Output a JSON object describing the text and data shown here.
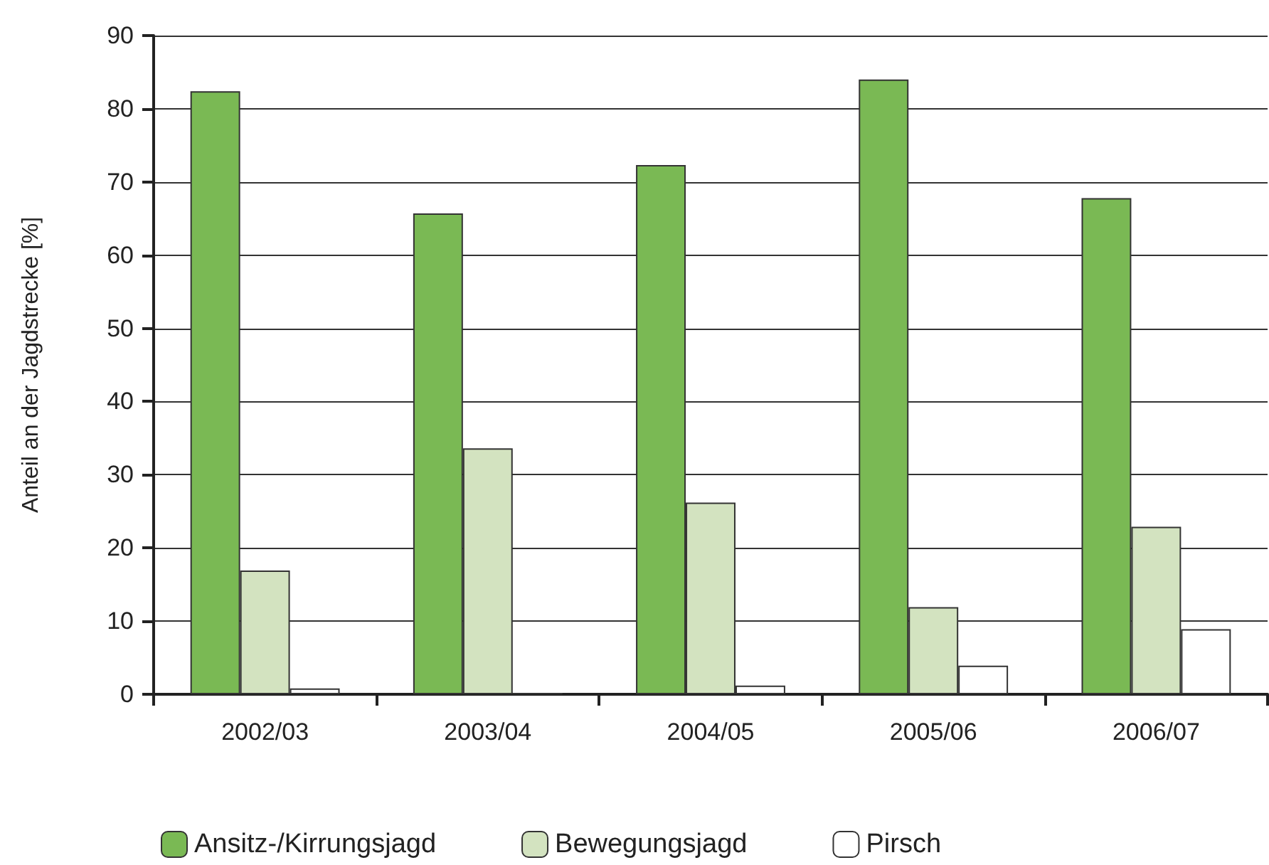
{
  "chart_data": {
    "type": "bar",
    "ylabel": "Anteil an der Jagdstrecke [%]",
    "categories": [
      "2002/03",
      "2003/04",
      "2004/05",
      "2005/06",
      "2006/07"
    ],
    "series": [
      {
        "name": "Ansitz-/Kirrungsjagd",
        "color": "#7ab954",
        "values": [
          82.4,
          65.7,
          72.3,
          84,
          67.8
        ]
      },
      {
        "name": "Bewegungsjagd",
        "color": "#d3e3c0",
        "values": [
          16.9,
          33.6,
          26.2,
          11.9,
          22.9
        ]
      },
      {
        "name": "Pirsch",
        "color": "#ffffff",
        "values": [
          0.8,
          0.2,
          1.2,
          3.9,
          8.9
        ]
      }
    ],
    "ylim": [
      0,
      90
    ],
    "yticks": [
      0,
      10,
      20,
      30,
      40,
      50,
      60,
      70,
      80,
      90
    ],
    "grid": "y",
    "legend": "bottom"
  }
}
